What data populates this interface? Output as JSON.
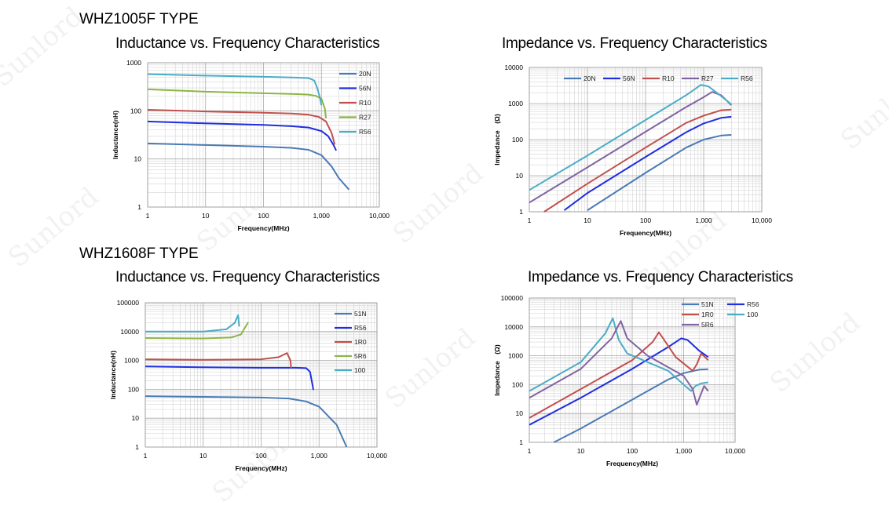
{
  "sections": [
    {
      "title": "WHZ1005F TYPE"
    },
    {
      "title": "WHZ1608F TYPE"
    }
  ],
  "watermark": {
    "text": "Sunlord"
  },
  "chart_data": [
    {
      "type": "line",
      "title": "Inductance vs. Frequency Characteristics",
      "xlabel": "Frequency(MHz)",
      "ylabel": "Inductance(nH)",
      "xscale": "log",
      "yscale": "log",
      "xlim": [
        1,
        10000
      ],
      "ylim": [
        1,
        1000
      ],
      "xticks": [
        {
          "v": 1,
          "label": "1"
        },
        {
          "v": 10,
          "label": "10"
        },
        {
          "v": 100,
          "label": "100"
        },
        {
          "v": 1000,
          "label": "1,000"
        },
        {
          "v": 10000,
          "label": "10,000"
        }
      ],
      "yticks": [
        {
          "v": 1,
          "label": "1"
        },
        {
          "v": 10,
          "label": "10"
        },
        {
          "v": 100,
          "label": "100"
        },
        {
          "v": 1000,
          "label": "1000"
        }
      ],
      "legend_position": "right",
      "series": [
        {
          "name": "20N",
          "color": "#4a7ab5",
          "x": [
            1,
            10,
            100,
            300,
            600,
            1000,
            1500,
            2000,
            3000
          ],
          "y": [
            21,
            19.5,
            18,
            17,
            15.5,
            12,
            7,
            4,
            2.3
          ]
        },
        {
          "name": "56N",
          "color": "#1f2ee0",
          "x": [
            1,
            10,
            100,
            300,
            600,
            1000,
            1300,
            1600,
            1800
          ],
          "y": [
            60,
            55,
            51,
            48,
            45,
            38,
            30,
            20,
            15
          ]
        },
        {
          "name": "R10",
          "color": "#c0504d",
          "x": [
            1,
            10,
            100,
            300,
            600,
            900,
            1200,
            1500,
            1700
          ],
          "y": [
            105,
            97,
            91,
            88,
            83,
            75,
            60,
            35,
            20
          ]
        },
        {
          "name": "R27",
          "color": "#8db545",
          "x": [
            1,
            10,
            100,
            300,
            600,
            800,
            1000,
            1150,
            1200
          ],
          "y": [
            280,
            250,
            232,
            225,
            218,
            205,
            180,
            110,
            70
          ]
        },
        {
          "name": "R56",
          "color": "#4bacc6",
          "x": [
            1,
            10,
            100,
            300,
            600,
            750,
            850,
            950,
            1000
          ],
          "y": [
            580,
            540,
            510,
            495,
            480,
            430,
            300,
            180,
            130
          ]
        }
      ]
    },
    {
      "type": "line",
      "title": "Impedance vs. Frequency Characteristics",
      "xlabel": "Frequency(MHz)",
      "ylabel": "Impedance　(Ω)",
      "xscale": "log",
      "yscale": "log",
      "xlim": [
        1,
        10000
      ],
      "ylim": [
        1,
        10000
      ],
      "xticks": [
        {
          "v": 1,
          "label": "1"
        },
        {
          "v": 10,
          "label": "10"
        },
        {
          "v": 100,
          "label": "100"
        },
        {
          "v": 1000,
          "label": "1,000"
        },
        {
          "v": 10000,
          "label": "10,000"
        }
      ],
      "yticks": [
        {
          "v": 1,
          "label": "1"
        },
        {
          "v": 10,
          "label": "10"
        },
        {
          "v": 100,
          "label": "100"
        },
        {
          "v": 1000,
          "label": "1000"
        },
        {
          "v": 10000,
          "label": "10000"
        }
      ],
      "legend_position": "top",
      "series": [
        {
          "name": "20N",
          "color": "#4a7ab5",
          "x": [
            10,
            100,
            500,
            1000,
            2000,
            3000
          ],
          "y": [
            1.1,
            12,
            60,
            100,
            130,
            135
          ]
        },
        {
          "name": "56N",
          "color": "#1f2ee0",
          "x": [
            4,
            10,
            100,
            500,
            1000,
            2000,
            3000
          ],
          "y": [
            1.1,
            3.3,
            33,
            160,
            280,
            400,
            430
          ]
        },
        {
          "name": "R10",
          "color": "#c0504d",
          "x": [
            1.8,
            10,
            100,
            500,
            1000,
            2000,
            3000
          ],
          "y": [
            1,
            6,
            60,
            290,
            460,
            650,
            680
          ]
        },
        {
          "name": "R27",
          "color": "#8064a2",
          "x": [
            1,
            10,
            100,
            500,
            1000,
            1400,
            2000,
            3000
          ],
          "y": [
            1.8,
            17,
            165,
            800,
            1500,
            2100,
            1700,
            900
          ]
        },
        {
          "name": "R56",
          "color": "#4bacc6",
          "x": [
            1,
            10,
            100,
            500,
            900,
            1200,
            2000,
            3000
          ],
          "y": [
            4,
            36,
            350,
            1700,
            3300,
            3000,
            1600,
            950
          ]
        }
      ]
    },
    {
      "type": "line",
      "title": "Inductance vs. Frequency Characteristics",
      "xlabel": "Frequency(MHz)",
      "ylabel": "Inductance(nH)",
      "xscale": "log",
      "yscale": "log",
      "xlim": [
        1,
        10000
      ],
      "ylim": [
        1,
        100000
      ],
      "xticks": [
        {
          "v": 1,
          "label": "1"
        },
        {
          "v": 10,
          "label": "10"
        },
        {
          "v": 100,
          "label": "100"
        },
        {
          "v": 1000,
          "label": "1,000"
        },
        {
          "v": 10000,
          "label": "10,000"
        }
      ],
      "yticks": [
        {
          "v": 1,
          "label": "1"
        },
        {
          "v": 10,
          "label": "10"
        },
        {
          "v": 100,
          "label": "100"
        },
        {
          "v": 1000,
          "label": "1000"
        },
        {
          "v": 10000,
          "label": "10000"
        },
        {
          "v": 100000,
          "label": "100000"
        }
      ],
      "legend_position": "right",
      "series": [
        {
          "name": "51N",
          "color": "#4a7ab5",
          "x": [
            1,
            10,
            100,
            300,
            600,
            1000,
            2000,
            3000
          ],
          "y": [
            58,
            55,
            52,
            48,
            38,
            25,
            6,
            1
          ]
        },
        {
          "name": "R56",
          "color": "#1f2ee0",
          "x": [
            1,
            10,
            100,
            400,
            600,
            700,
            800
          ],
          "y": [
            620,
            580,
            560,
            560,
            540,
            400,
            95
          ]
        },
        {
          "name": "1R0",
          "color": "#c0504d",
          "x": [
            1,
            10,
            100,
            200,
            280,
            320,
            330
          ],
          "y": [
            1100,
            1050,
            1100,
            1300,
            1800,
            1000,
            550
          ]
        },
        {
          "name": "5R6",
          "color": "#8db545",
          "x": [
            1,
            10,
            30,
            45,
            55,
            60
          ],
          "y": [
            6000,
            5800,
            6200,
            8000,
            16000,
            21000
          ]
        },
        {
          "name": "100",
          "color": "#4bacc6",
          "x": [
            1,
            10,
            25,
            35,
            40,
            42
          ],
          "y": [
            10000,
            10000,
            12000,
            20000,
            37000,
            15000
          ]
        }
      ]
    },
    {
      "type": "line",
      "title": "Impedance vs. Frequency Characteristics",
      "xlabel": "Frequency(MHz)",
      "ylabel": "Impedance　(Ω)",
      "xscale": "log",
      "yscale": "log",
      "xlim": [
        1,
        10000
      ],
      "ylim": [
        1,
        100000
      ],
      "xticks": [
        {
          "v": 1,
          "label": "1"
        },
        {
          "v": 10,
          "label": "10"
        },
        {
          "v": 100,
          "label": "100"
        },
        {
          "v": 1000,
          "label": "1,000"
        },
        {
          "v": 10000,
          "label": "10,000"
        }
      ],
      "yticks": [
        {
          "v": 1,
          "label": "1"
        },
        {
          "v": 10,
          "label": "10"
        },
        {
          "v": 100,
          "label": "100"
        },
        {
          "v": 1000,
          "label": "1000"
        },
        {
          "v": 10000,
          "label": "10000"
        },
        {
          "v": 100000,
          "label": "100000"
        }
      ],
      "legend_position": "top-right",
      "series": [
        {
          "name": "51N",
          "color": "#4a7ab5",
          "x": [
            3,
            10,
            100,
            500,
            1000,
            2000,
            3000
          ],
          "y": [
            1,
            3,
            30,
            150,
            250,
            330,
            340
          ]
        },
        {
          "name": "R56",
          "color": "#1f2ee0",
          "x": [
            1,
            10,
            100,
            500,
            900,
            1200,
            2000,
            3000
          ],
          "y": [
            4,
            35,
            350,
            2000,
            4000,
            3500,
            1500,
            900
          ]
        },
        {
          "name": "1R0",
          "color": "#c0504d",
          "x": [
            1,
            10,
            100,
            250,
            330,
            400,
            700,
            1500,
            1800,
            2200,
            3000
          ],
          "y": [
            7,
            70,
            700,
            3000,
            6500,
            4000,
            900,
            300,
            500,
            1200,
            700
          ]
        },
        {
          "name": "100",
          "color": "#4bacc6",
          "x": [
            1,
            10,
            30,
            42,
            55,
            80,
            200,
            500,
            1000,
            1400,
            1700,
            2200,
            3000
          ],
          "y": [
            60,
            600,
            6000,
            20000,
            3500,
            1200,
            600,
            300,
            100,
            60,
            90,
            110,
            120
          ]
        },
        {
          "name": "5R6",
          "color": "#8064a2",
          "x": [
            1,
            10,
            40,
            55,
            60,
            80,
            200,
            500,
            1000,
            1500,
            1800,
            2500,
            3000
          ],
          "y": [
            35,
            350,
            4000,
            12000,
            16000,
            4000,
            1000,
            400,
            200,
            70,
            20,
            90,
            60
          ]
        }
      ]
    }
  ]
}
